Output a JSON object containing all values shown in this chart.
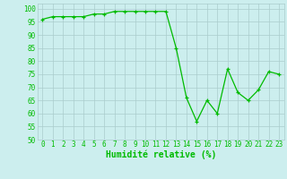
{
  "x": [
    0,
    1,
    2,
    3,
    4,
    5,
    6,
    7,
    8,
    9,
    10,
    11,
    12,
    13,
    14,
    15,
    16,
    17,
    18,
    19,
    20,
    21,
    22,
    23
  ],
  "y": [
    96,
    97,
    97,
    97,
    97,
    98,
    98,
    99,
    99,
    99,
    99,
    99,
    99,
    85,
    66,
    57,
    65,
    60,
    77,
    68,
    65,
    69,
    76,
    75
  ],
  "line_color": "#00bb00",
  "marker": "+",
  "bg_color": "#cceeee",
  "grid_color": "#aacccc",
  "xlabel": "Humidité relative (%)",
  "xlabel_color": "#00bb00",
  "tick_color": "#00bb00",
  "ylim": [
    50,
    102
  ],
  "xlim": [
    -0.5,
    23.5
  ],
  "yticks": [
    50,
    55,
    60,
    65,
    70,
    75,
    80,
    85,
    90,
    95,
    100
  ],
  "xticks": [
    0,
    1,
    2,
    3,
    4,
    5,
    6,
    7,
    8,
    9,
    10,
    11,
    12,
    13,
    14,
    15,
    16,
    17,
    18,
    19,
    20,
    21,
    22,
    23
  ],
  "tick_fontsize": 5.5,
  "xlabel_fontsize": 7
}
